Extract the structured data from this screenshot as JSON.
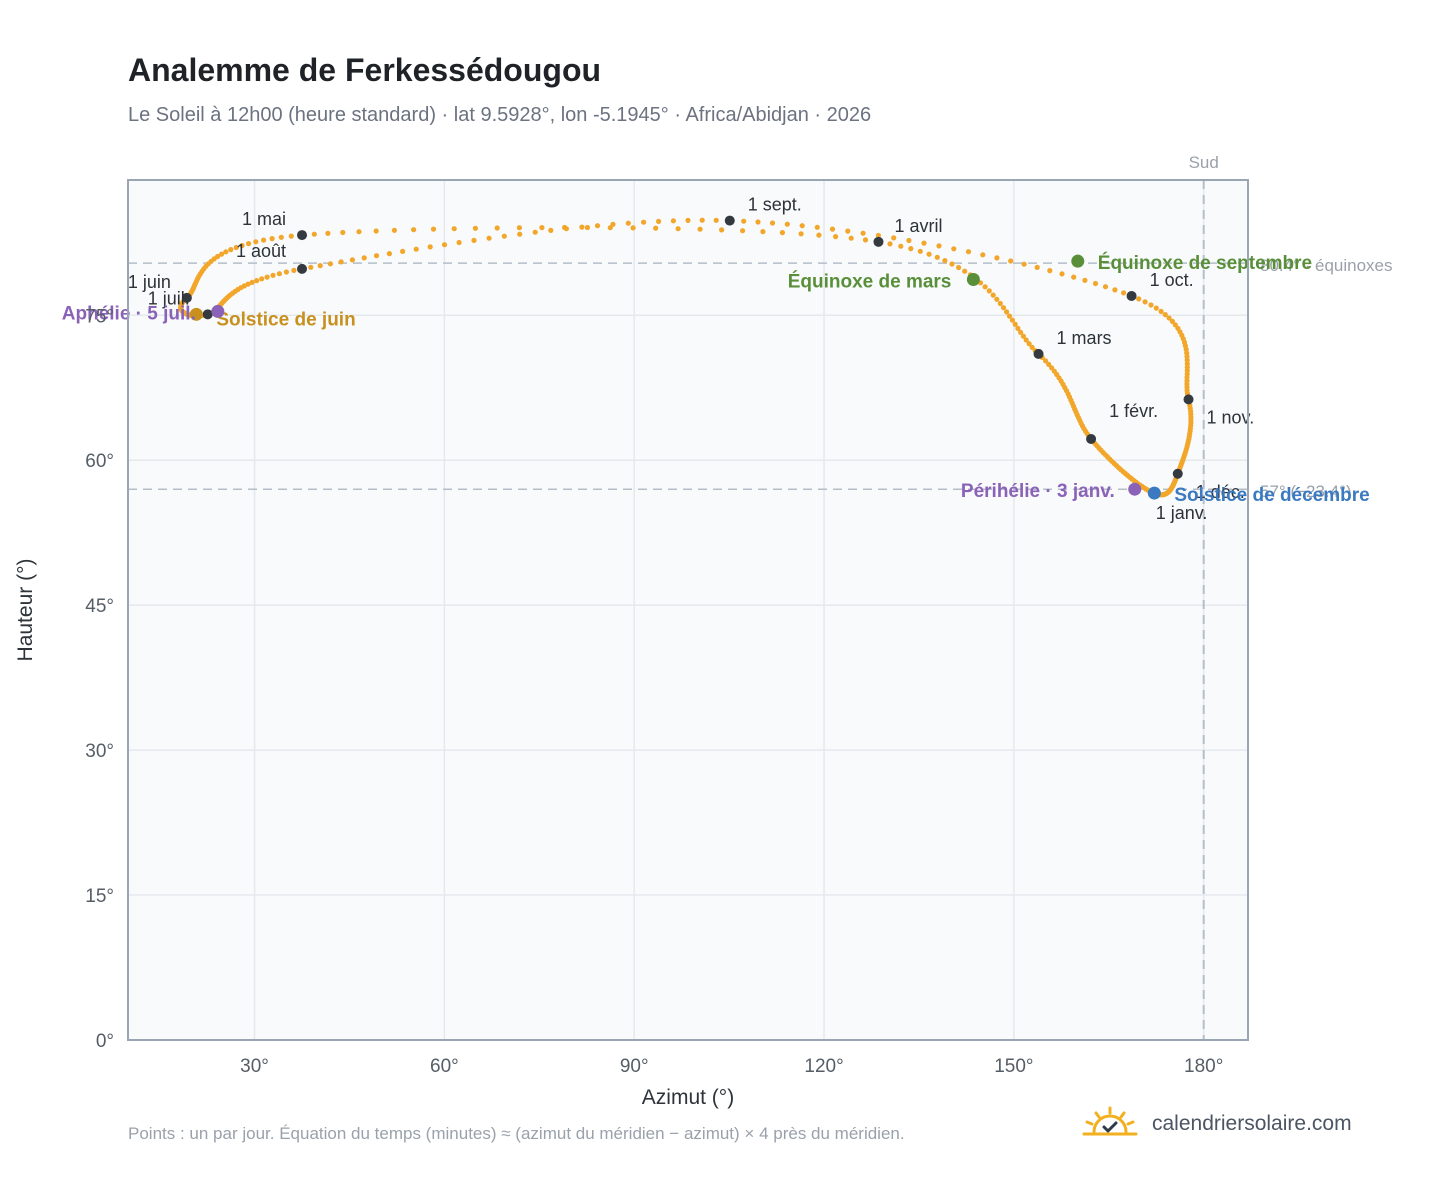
{
  "title": "Analemme de Ferkessédougou",
  "subtitle": "Le Soleil à 12h00 (heure standard) · lat 9.5928°, lon -5.1945° · Africa/Abidjan · 2026",
  "footnote": "Points : un par jour. Équation du temps (minutes) ≈ (azimut du méridien − azimut) × 4 près du méridien.",
  "brand": {
    "name": "calendriersolaire.com",
    "icon": "sun-check-icon",
    "icon_color": "#f2b01e"
  },
  "colors": {
    "analemma": "#f2a62a",
    "month_marker": "#343a40",
    "equinox": "#5a8f3a",
    "solstice_june": "#c8901e",
    "solstice_december": "#3b7ac0",
    "apsis": "#8a62b8",
    "reference_line": "#b4bec9",
    "grid": "#e5e9ee",
    "plot_bg": "#f8fafc",
    "frame": "#9aa5b3"
  },
  "chart_data": {
    "type": "scatter",
    "title": "Analemme de Ferkessédougou",
    "xlabel": "Azimut (°)",
    "ylabel": "Hauteur (°)",
    "xlim": [
      10,
      187
    ],
    "ylim": [
      0,
      89
    ],
    "xticks": [
      {
        "value": 30,
        "label": "30°"
      },
      {
        "value": 60,
        "label": "60°"
      },
      {
        "value": 90,
        "label": "90°"
      },
      {
        "value": 120,
        "label": "120°"
      },
      {
        "value": 150,
        "label": "150°"
      },
      {
        "value": 180,
        "label": "180°"
      }
    ],
    "yticks": [
      {
        "value": 0,
        "label": "0°"
      },
      {
        "value": 15,
        "label": "15°"
      },
      {
        "value": 30,
        "label": "30°"
      },
      {
        "value": 45,
        "label": "45°"
      },
      {
        "value": 60,
        "label": "60°"
      },
      {
        "value": 75,
        "label": "75°"
      }
    ],
    "grid": true,
    "reference_lines": [
      {
        "orientation": "vertical",
        "value": 180,
        "label": "Sud"
      },
      {
        "orientation": "horizontal",
        "value": 80.4,
        "label": "80.4° · équinoxes"
      },
      {
        "orientation": "horizontal",
        "value": 57.0,
        "label": "57° (−23.4°)"
      }
    ],
    "month_markers": [
      {
        "label": "1 janv.",
        "x": 172.1,
        "y": 56.6
      },
      {
        "label": "1 févr.",
        "x": 162.2,
        "y": 62.2
      },
      {
        "label": "1 mars",
        "x": 153.9,
        "y": 71.0
      },
      {
        "label": "1 avril",
        "x": 128.6,
        "y": 82.6
      },
      {
        "label": "1 mai",
        "x": 37.5,
        "y": 83.3
      },
      {
        "label": "1 juin",
        "x": 19.3,
        "y": 76.8
      },
      {
        "label": "1 juil.",
        "x": 22.6,
        "y": 75.1
      },
      {
        "label": "1 août",
        "x": 37.5,
        "y": 79.8
      },
      {
        "label": "1 sept.",
        "x": 105.1,
        "y": 84.8
      },
      {
        "label": "1 oct.",
        "x": 168.6,
        "y": 77.0
      },
      {
        "label": "1 nov.",
        "x": 177.6,
        "y": 66.3
      },
      {
        "label": "1 déc.",
        "x": 175.9,
        "y": 58.6
      }
    ],
    "events": [
      {
        "label": "Équinoxe de mars",
        "kind": "equinox",
        "x": 143.6,
        "y": 78.7
      },
      {
        "label": "Équinoxe de septembre",
        "kind": "equinox",
        "x": 160.1,
        "y": 80.6
      },
      {
        "label": "Solstice de juin",
        "kind": "solstice_june",
        "x": 20.8,
        "y": 75.1
      },
      {
        "label": "Solstice de décembre",
        "kind": "solstice_december",
        "x": 172.2,
        "y": 56.6
      },
      {
        "label": "Aphélie · 5 juil.",
        "kind": "apsis",
        "x": 24.2,
        "y": 75.4
      },
      {
        "label": "Périhélie · 3 janv.",
        "kind": "apsis",
        "x": 169.1,
        "y": 57.0
      }
    ],
    "path_note": "One dot per day; the daily points follow the month markers in order of the year.",
    "path_order": [
      "1 janv.",
      "1 févr.",
      "1 mars",
      "1 avril",
      "1 mai",
      "1 juin",
      "1 juil.",
      "1 août",
      "1 sept.",
      "1 oct.",
      "1 nov.",
      "1 déc."
    ]
  }
}
